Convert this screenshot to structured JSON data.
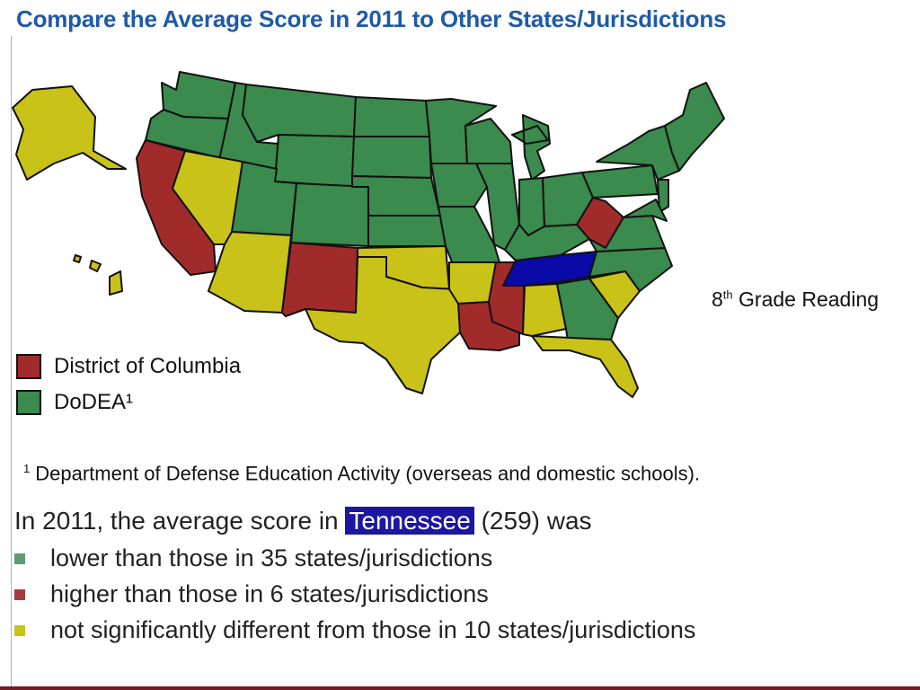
{
  "title": "Compare the Average Score in 2011 to Other States/Jurisdictions",
  "side_caption": {
    "grade": "8",
    "suffix": "th",
    "subject": " Grade Reading"
  },
  "colors": {
    "lower": "#3b8a4e",
    "higher": "#a12b2b",
    "not_significant": "#c9c218",
    "focus": "#0a0aa8",
    "border": "#111111"
  },
  "legend": [
    {
      "label": "District of Columbia",
      "color": "#a12b2b"
    },
    {
      "label": "DoDEA¹",
      "color": "#3b8a4e"
    }
  ],
  "footnote": {
    "marker": "1",
    "text": "Department of Defense Education Activity (overseas and domestic schools)."
  },
  "summary": {
    "prefix": "In 2011, the average score in ",
    "state": "Tennessee",
    "suffix": " (259) was"
  },
  "bullets": [
    {
      "text": "lower than those in 35 states/jurisdictions",
      "color": "#5e9a72"
    },
    {
      "text": "higher than those in 6 states/jurisdictions",
      "color": "#a53a3f"
    },
    {
      "text": "not significantly different from those in 10 states/jurisdictions",
      "color": "#c9c218"
    }
  ],
  "map": {
    "focus_state": "Tennessee",
    "higher_states": [
      "California",
      "New Mexico",
      "Louisiana",
      "Mississippi",
      "West Virginia"
    ],
    "not_significant_states": [
      "Alaska",
      "Nevada",
      "Arizona",
      "Texas",
      "Oklahoma",
      "Arkansas",
      "Alabama",
      "Florida",
      "South Carolina",
      "Hawaii"
    ]
  }
}
